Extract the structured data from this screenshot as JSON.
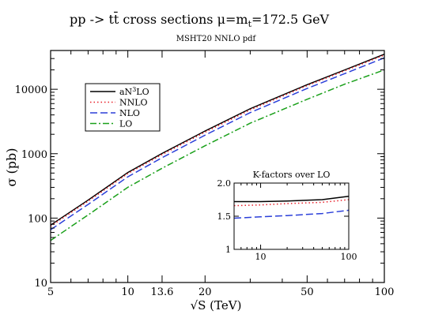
{
  "chart_data": [
    {
      "type": "line",
      "title": "pp -> tt̄        cross sections       μ=m",
      "title_sub": "t",
      "title_tail": "=172.5 GeV",
      "subtitle": "MSHT20 NNLO pdf",
      "xlabel": "√S  (TeV)",
      "ylabel": "σ (pb)",
      "xscale": "log",
      "yscale": "log",
      "xlim": [
        5,
        100
      ],
      "ylim": [
        10,
        40000
      ],
      "xticks": [
        5,
        10,
        13.6,
        20,
        50,
        100
      ],
      "xtick_labels": [
        "5",
        "10",
        "13.6",
        "20",
        "50",
        "100"
      ],
      "yticks": [
        10,
        100,
        1000,
        10000
      ],
      "ytick_labels": [
        "10",
        "100",
        "1000",
        "10000"
      ],
      "legend_position": "upper-left",
      "x": [
        5,
        7,
        10,
        13.6,
        20,
        30,
        50,
        70,
        100
      ],
      "series": [
        {
          "name": "aN³LO",
          "label_base": "aN",
          "label_sup": "3",
          "label_tail": "LO",
          "color": "#000000",
          "dash": "solid",
          "values": [
            78,
            190,
            510,
            1010,
            2250,
            5000,
            11800,
            20000,
            35000
          ]
        },
        {
          "name": "NNLO",
          "color": "#e8202a",
          "dash": "dotted",
          "values": [
            75,
            183,
            490,
            970,
            2160,
            4800,
            11400,
            19300,
            34000
          ]
        },
        {
          "name": "NLO",
          "color": "#2b3fd9",
          "dash": "dashed",
          "values": [
            66,
            163,
            437,
            868,
            1940,
            4340,
            10300,
            17500,
            30800
          ]
        },
        {
          "name": "LO",
          "color": "#1aa01a",
          "dash": "dashdot",
          "values": [
            45,
            112,
            300,
            595,
            1330,
            2980,
            7000,
            12000,
            20000
          ]
        }
      ]
    },
    {
      "type": "line",
      "title": "K-factors over LO",
      "xscale": "log",
      "xlim": [
        5,
        100
      ],
      "ylim": [
        1,
        2
      ],
      "xticks": [
        10,
        100
      ],
      "xtick_labels": [
        "10",
        "100"
      ],
      "yticks": [
        1,
        1.5,
        2
      ],
      "ytick_labels": [
        "1",
        "1.5",
        "2.0"
      ],
      "x": [
        5,
        10,
        20,
        50,
        100
      ],
      "series": [
        {
          "color": "#000000",
          "dash": "solid",
          "values": [
            1.72,
            1.72,
            1.73,
            1.75,
            1.8
          ]
        },
        {
          "color": "#e8202a",
          "dash": "dotted",
          "values": [
            1.66,
            1.67,
            1.69,
            1.71,
            1.75
          ]
        },
        {
          "color": "#2b3fd9",
          "dash": "dashed",
          "values": [
            1.47,
            1.49,
            1.51,
            1.54,
            1.59
          ]
        }
      ]
    }
  ]
}
